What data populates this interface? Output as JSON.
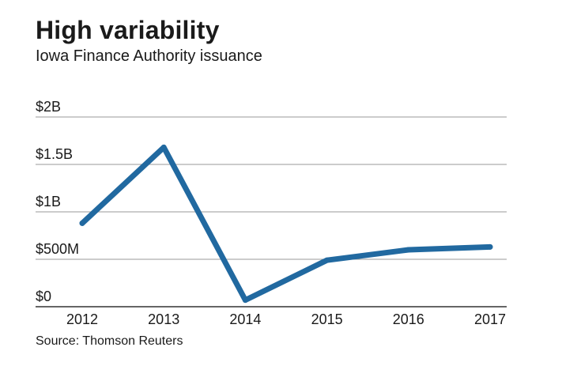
{
  "chart_data": {
    "type": "line",
    "title": "High variability",
    "subtitle": "Iowa Finance Authority issuance",
    "source": "Source: Thomson Reuters",
    "x": [
      "2012",
      "2013",
      "2014",
      "2015",
      "2016",
      "2017"
    ],
    "series": [
      {
        "values": [
          0.88,
          1.68,
          0.07,
          0.49,
          0.6,
          0.63
        ]
      }
    ],
    "xlabel": "",
    "ylabel": "",
    "ylim": [
      0,
      2
    ],
    "yunits": "billion USD",
    "yticks": [
      0,
      0.5,
      1,
      1.5,
      2
    ],
    "ytick_labels": [
      "$0",
      "$500M",
      "$1B",
      "$1.5B",
      "$2B"
    ],
    "grid": true,
    "legend": "none",
    "colors": {
      "line": "#2169a0",
      "grid": "#9a9a9a",
      "axis": "#333333"
    }
  }
}
